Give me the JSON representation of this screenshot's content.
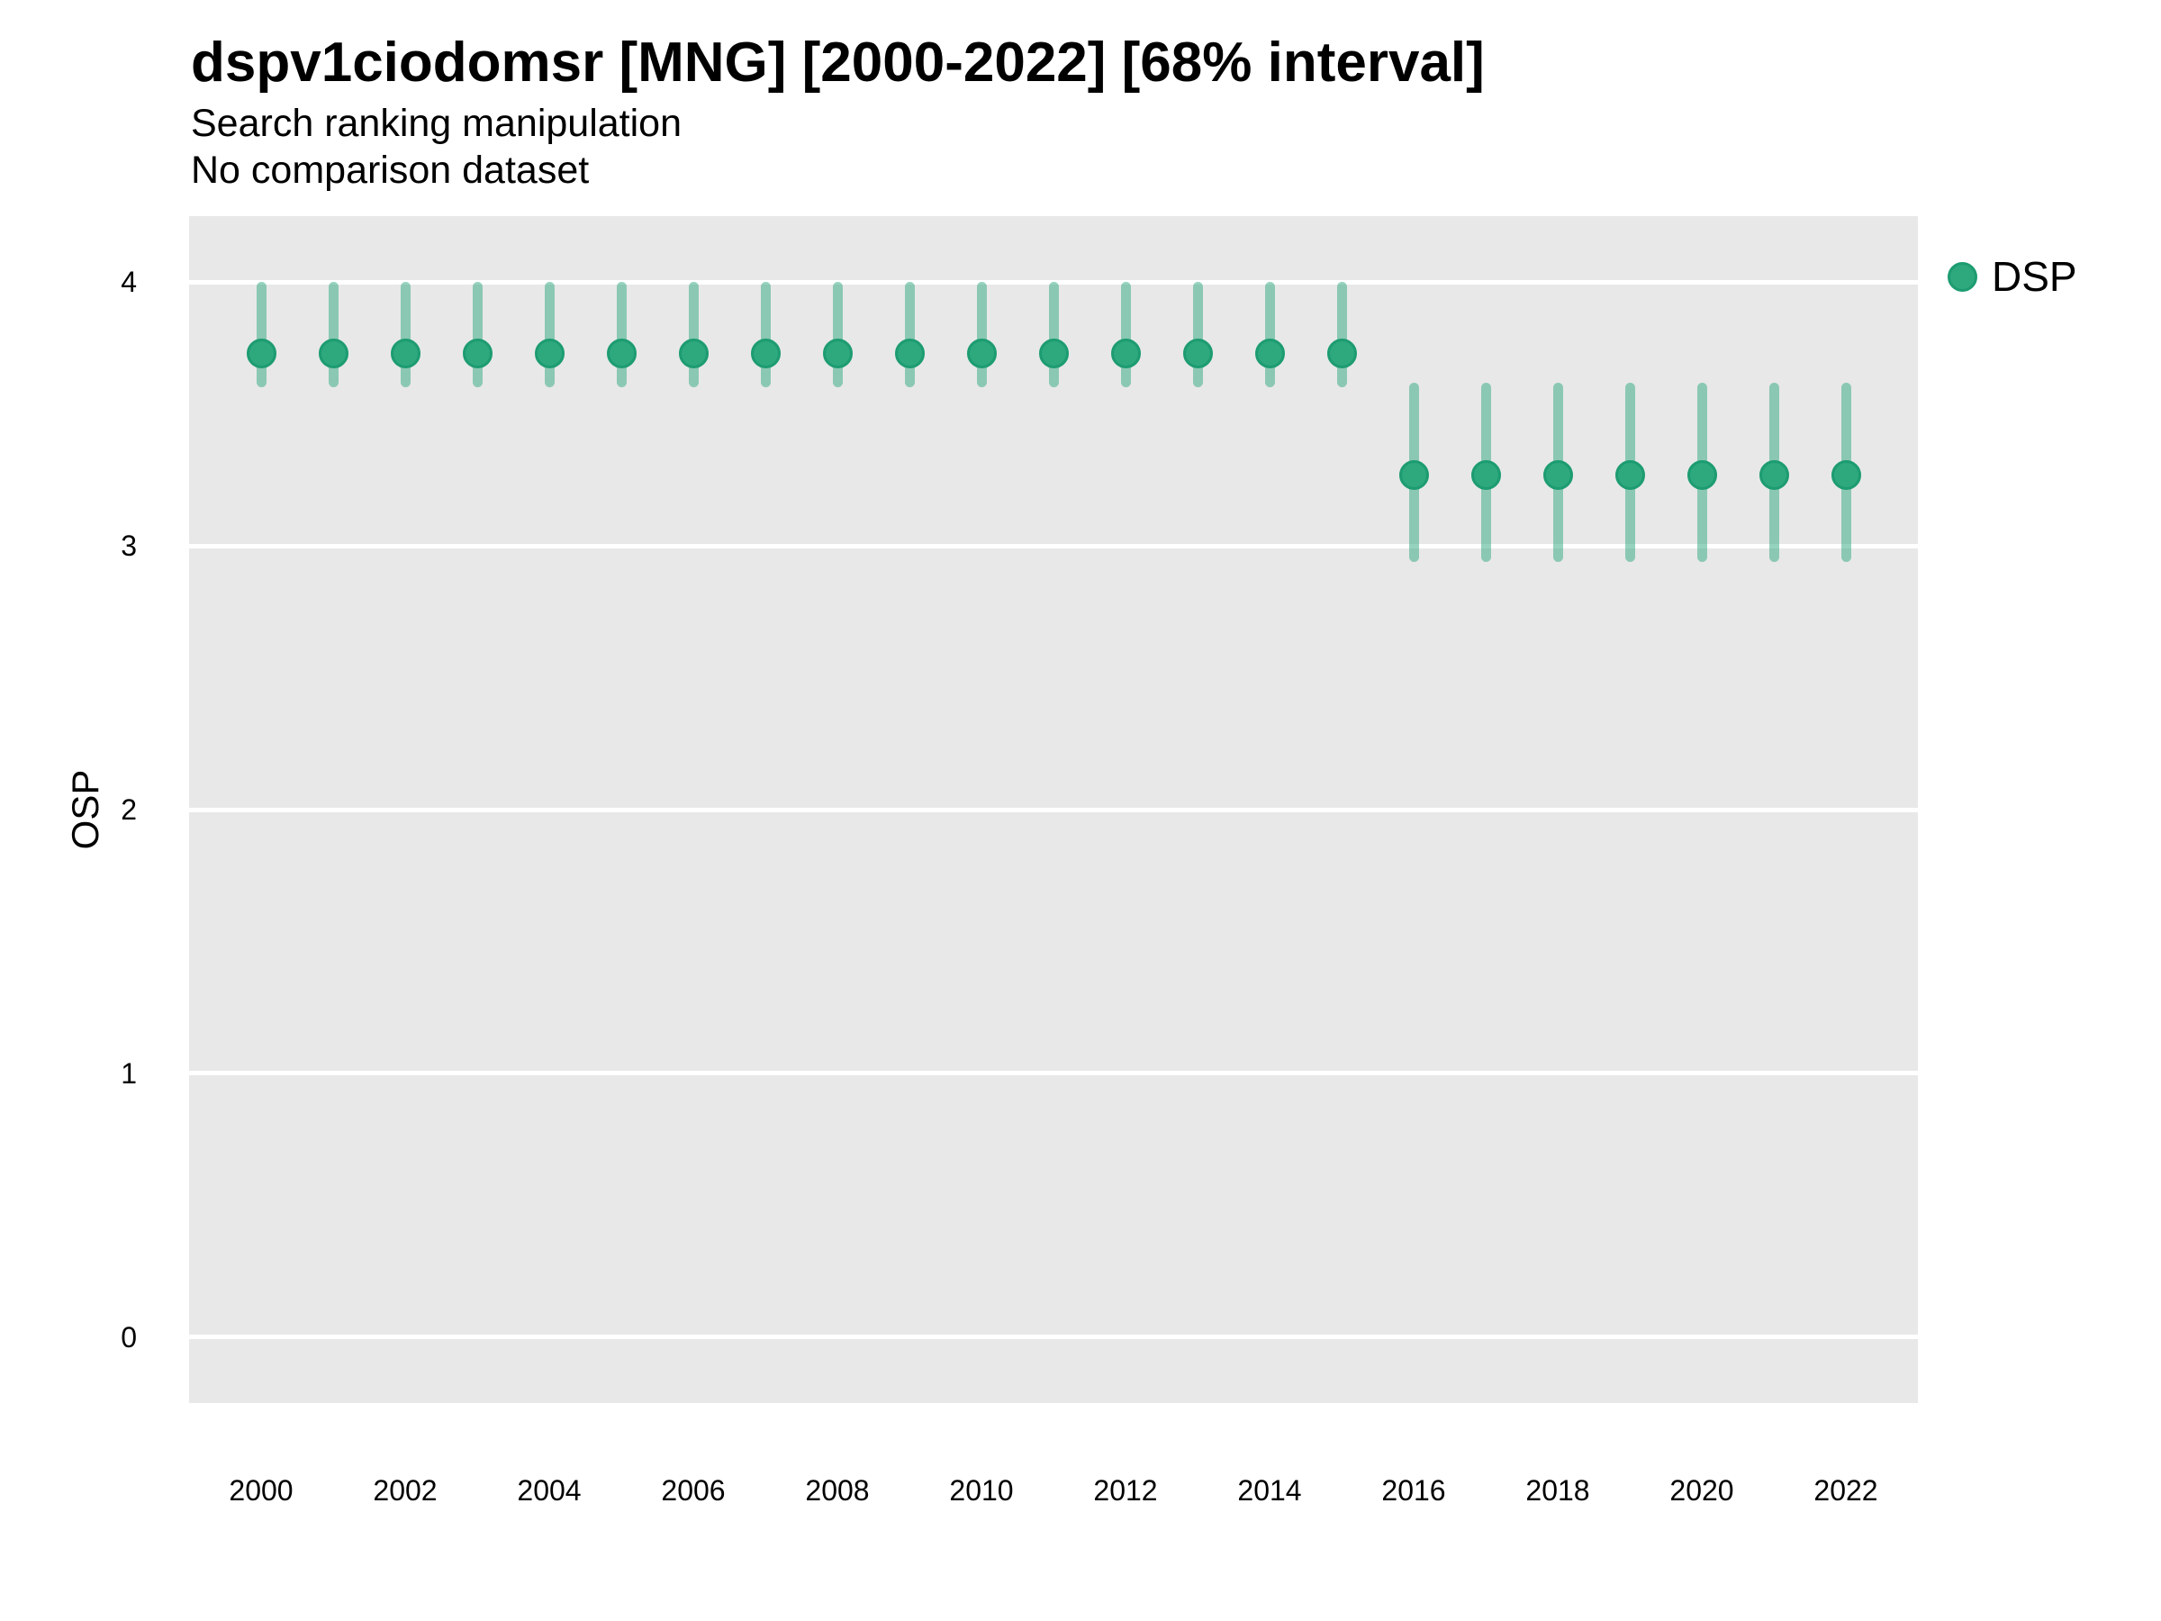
{
  "title": "dspv1ciodomsr [MNG] [2000-2022] [68% interval]",
  "subtitle": "Search ranking manipulation",
  "caption_note": "No comparison dataset",
  "y_axis_title": "OSP",
  "legend": {
    "label": "DSP"
  },
  "colors": {
    "point_fill": "#2EA87D",
    "point_border": "#1D9C71",
    "interval_bar": "rgba(46,168,125,0.5)",
    "panel_background": "#E8E8E8",
    "gridline": "#FFFFFF",
    "text": "#000000"
  },
  "chart_data": {
    "type": "scatter",
    "title": "dspv1ciodomsr [MNG] [2000-2022] [68% interval]",
    "subtitle": "Search ranking manipulation",
    "note": "No comparison dataset",
    "xlabel": "",
    "ylabel": "OSP",
    "interval_level": "68%",
    "legend_position": "right-top",
    "grid": "major-horizontal-white-on-grey",
    "xlim": [
      2000,
      2022
    ],
    "ylim": [
      -0.25,
      4.25
    ],
    "y_ticks": [
      0,
      1,
      2,
      3,
      4
    ],
    "x_ticks": [
      2000,
      2002,
      2004,
      2006,
      2008,
      2010,
      2012,
      2014,
      2016,
      2018,
      2020,
      2022
    ],
    "x": [
      2000,
      2001,
      2002,
      2003,
      2004,
      2005,
      2006,
      2007,
      2008,
      2009,
      2010,
      2011,
      2012,
      2013,
      2014,
      2015,
      2016,
      2017,
      2018,
      2019,
      2020,
      2021,
      2022
    ],
    "series": [
      {
        "name": "DSP",
        "estimate": [
          3.73,
          3.73,
          3.73,
          3.73,
          3.73,
          3.73,
          3.73,
          3.73,
          3.73,
          3.73,
          3.73,
          3.73,
          3.73,
          3.73,
          3.73,
          3.73,
          3.27,
          3.27,
          3.27,
          3.27,
          3.27,
          3.27,
          3.27
        ],
        "lower": [
          3.6,
          3.6,
          3.6,
          3.6,
          3.6,
          3.6,
          3.6,
          3.6,
          3.6,
          3.6,
          3.6,
          3.6,
          3.6,
          3.6,
          3.6,
          3.6,
          2.94,
          2.94,
          2.94,
          2.94,
          2.94,
          2.94,
          2.94
        ],
        "upper": [
          4.0,
          4.0,
          4.0,
          4.0,
          4.0,
          4.0,
          4.0,
          4.0,
          4.0,
          4.0,
          4.0,
          4.0,
          4.0,
          4.0,
          4.0,
          4.0,
          3.62,
          3.62,
          3.62,
          3.62,
          3.62,
          3.62,
          3.62
        ]
      }
    ]
  }
}
